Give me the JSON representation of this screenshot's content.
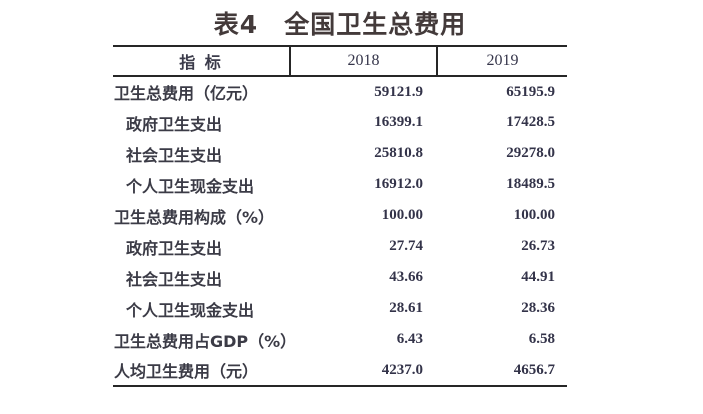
{
  "title": "表4　全国卫生总费用",
  "table": {
    "columns": [
      "指 标",
      "2018",
      "2019"
    ],
    "rows": [
      {
        "label": "卫生总费用（亿元）",
        "indent": false,
        "v2018": "59121.9",
        "v2019": "65195.9"
      },
      {
        "label": "政府卫生支出",
        "indent": true,
        "v2018": "16399.1",
        "v2019": "17428.5"
      },
      {
        "label": "社会卫生支出",
        "indent": true,
        "v2018": "25810.8",
        "v2019": "29278.0"
      },
      {
        "label": "个人卫生现金支出",
        "indent": true,
        "v2018": "16912.0",
        "v2019": "18489.5"
      },
      {
        "label": "卫生总费用构成（%）",
        "indent": false,
        "v2018": "100.00",
        "v2019": "100.00"
      },
      {
        "label": "政府卫生支出",
        "indent": true,
        "v2018": "27.74",
        "v2019": "26.73"
      },
      {
        "label": "社会卫生支出",
        "indent": true,
        "v2018": "43.66",
        "v2019": "44.91"
      },
      {
        "label": "个人卫生现金支出",
        "indent": true,
        "v2018": "28.61",
        "v2019": "28.36"
      },
      {
        "label": "卫生总费用占GDP（%）",
        "indent": false,
        "v2018": "6.43",
        "v2019": "6.58"
      },
      {
        "label": "人均卫生费用（元）",
        "indent": false,
        "v2018": "4237.0",
        "v2019": "4656.7"
      }
    ]
  },
  "colors": {
    "title_text": "#433a3a",
    "body_text": "#3b3b46",
    "number_text": "#333349",
    "rule_lines": "#262626",
    "background": "#ffffff"
  }
}
